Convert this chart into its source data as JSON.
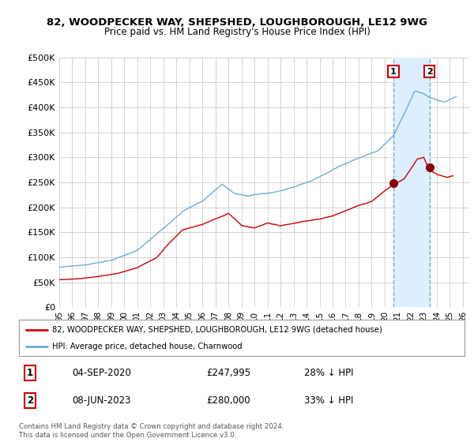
{
  "title": "82, WOODPECKER WAY, SHEPSHED, LOUGHBOROUGH, LE12 9WG",
  "subtitle": "Price paid vs. HM Land Registry's House Price Index (HPI)",
  "ylabel_ticks": [
    "£0",
    "£50K",
    "£100K",
    "£150K",
    "£200K",
    "£250K",
    "£300K",
    "£350K",
    "£400K",
    "£450K",
    "£500K"
  ],
  "ytick_values": [
    0,
    50000,
    100000,
    150000,
    200000,
    250000,
    300000,
    350000,
    400000,
    450000,
    500000
  ],
  "xlim_start": 1995.0,
  "xlim_end": 2026.5,
  "ylim": [
    0,
    500000
  ],
  "hpi_color": "#6baed6",
  "price_color": "#cc0000",
  "shade_color": "#ddeeff",
  "vline_color": "#6baed6",
  "marker1_date": 2020.67,
  "marker1_price": 247995,
  "marker1_label": "04-SEP-2020",
  "marker1_value_str": "£247,995",
  "marker1_pct": "28% ↓ HPI",
  "marker2_date": 2023.44,
  "marker2_price": 280000,
  "marker2_label": "08-JUN-2023",
  "marker2_value_str": "£280,000",
  "marker2_pct": "33% ↓ HPI",
  "legend_line1": "82, WOODPECKER WAY, SHEPSHED, LOUGHBOROUGH, LE12 9WG (detached house)",
  "legend_line2": "HPI: Average price, detached house, Charnwood",
  "footnote": "Contains HM Land Registry data © Crown copyright and database right 2024.\nThis data is licensed under the Open Government Licence v3.0.",
  "background_color": "#ffffff",
  "grid_color": "#cccccc"
}
